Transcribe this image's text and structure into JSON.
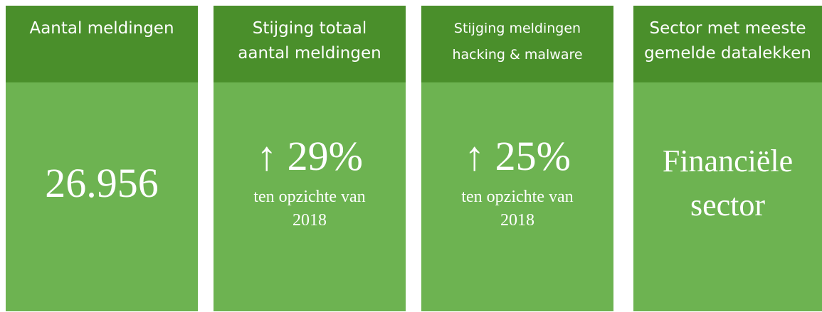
{
  "cards": [
    {
      "title": "Aantal meldingen",
      "value": "26.956"
    },
    {
      "title": "Stijging totaal aantal meldingen",
      "value": "↑ 29%",
      "note": "ten opzichte van 2018"
    },
    {
      "title": "Stijging meldingen hacking & malware",
      "value": "↑ 25%",
      "note": "ten opzichte van 2018"
    },
    {
      "title": "Sector met meeste gemelde datalekken",
      "value": "Financiële sector"
    }
  ]
}
